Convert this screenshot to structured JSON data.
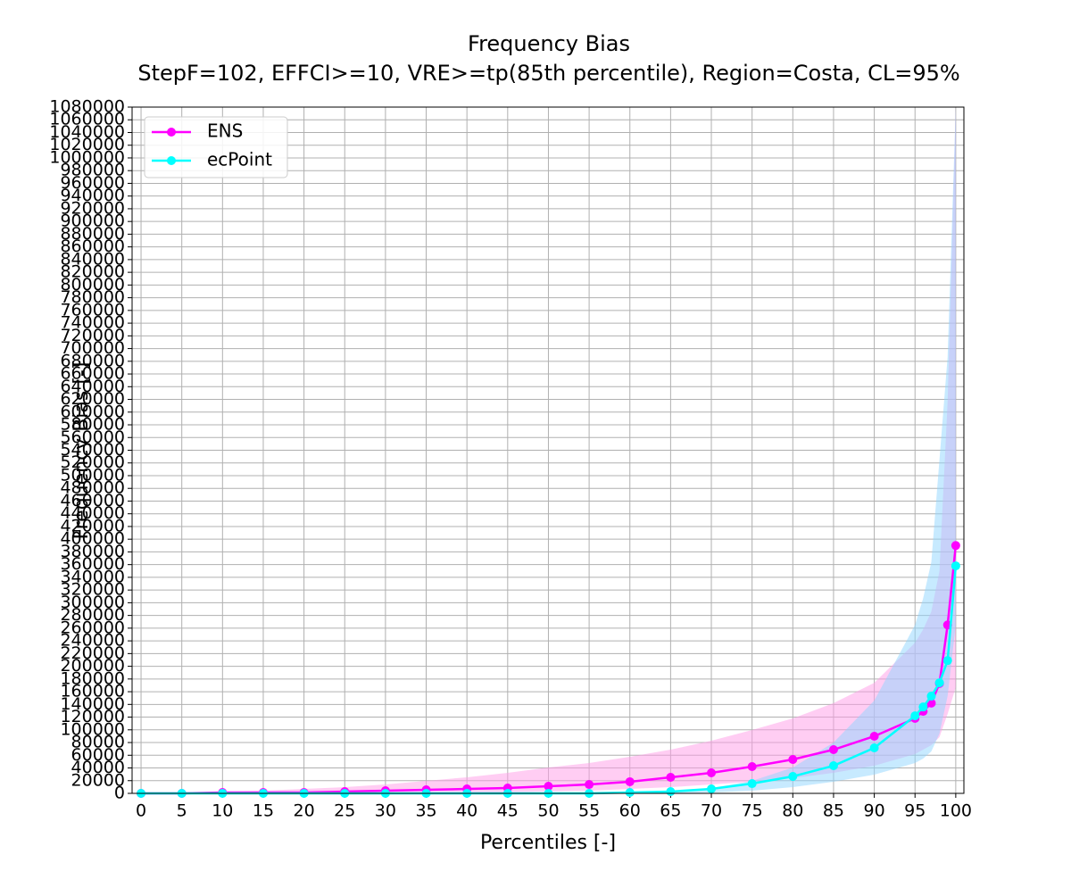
{
  "chart_data": {
    "type": "line",
    "title": "Frequency Bias",
    "subtitle": "StepF=102, EFFCI>=10, VRE>=tp(85th percentile), Region=Costa, CL=95%",
    "x_label": "Percentiles [-]",
    "y_label": "Frequency Bias [-]",
    "x": [
      0,
      5,
      10,
      15,
      20,
      25,
      30,
      35,
      40,
      45,
      50,
      55,
      60,
      65,
      70,
      75,
      80,
      85,
      90,
      95,
      96,
      97,
      98,
      99,
      100
    ],
    "series": [
      {
        "name": "ENS",
        "color": "#ff00ff",
        "band_color": "#ff9be8",
        "values": [
          0,
          0,
          1400,
          1400,
          1400,
          2800,
          4200,
          5600,
          7000,
          8400,
          11200,
          14000,
          18300,
          25300,
          32300,
          42100,
          53400,
          68800,
          89900,
          118000,
          129000,
          142000,
          173000,
          265000,
          390000
        ],
        "upper": [
          0,
          1400,
          2800,
          4200,
          7000,
          9800,
          14000,
          19700,
          25300,
          32300,
          40700,
          47700,
          57600,
          68800,
          82800,
          99700,
          118000,
          142000,
          174000,
          237000,
          258000,
          286000,
          350000,
          616000,
          1080000
        ],
        "lower": [
          0,
          0,
          0,
          0,
          0,
          0,
          0,
          0,
          0,
          1400,
          2800,
          4200,
          7000,
          9800,
          14000,
          18300,
          23900,
          32300,
          43500,
          61800,
          68800,
          75800,
          88500,
          125000,
          167000
        ]
      },
      {
        "name": "ecPoint",
        "color": "#00ffff",
        "band_color": "#8fd6ff",
        "values": [
          0,
          0,
          0,
          0,
          0,
          0,
          0,
          0,
          0,
          0,
          0,
          0,
          1400,
          2800,
          7000,
          15400,
          26700,
          43500,
          71600,
          122000,
          136000,
          153000,
          174000,
          209000,
          358000
        ],
        "upper": [
          0,
          0,
          0,
          0,
          0,
          0,
          0,
          0,
          0,
          0,
          0,
          0,
          1400,
          4200,
          8400,
          19700,
          40700,
          80000,
          146000,
          265000,
          307000,
          364000,
          525000,
          687000,
          1080000
        ],
        "lower": [
          0,
          0,
          0,
          0,
          0,
          0,
          0,
          0,
          0,
          0,
          0,
          0,
          0,
          0,
          1400,
          4200,
          9800,
          18300,
          29500,
          47700,
          54800,
          66000,
          94100,
          153000,
          265000
        ]
      }
    ],
    "xlim": [
      -1.1,
      101
    ],
    "xticks": [
      0,
      5,
      10,
      15,
      20,
      25,
      30,
      35,
      40,
      45,
      50,
      55,
      60,
      65,
      70,
      75,
      80,
      85,
      90,
      95,
      100
    ],
    "ylim": [
      0,
      1080000
    ],
    "yticks": [
      0,
      20000,
      40000,
      60000,
      80000,
      100000,
      120000,
      140000,
      160000,
      180000,
      200000,
      220000,
      240000,
      260000,
      280000,
      300000,
      320000,
      340000,
      360000,
      380000,
      400000,
      420000,
      440000,
      460000,
      480000,
      500000,
      520000,
      540000,
      560000,
      580000,
      600000,
      620000,
      640000,
      660000,
      680000,
      700000,
      720000,
      740000,
      760000,
      780000,
      800000,
      820000,
      840000,
      860000,
      880000,
      900000,
      920000,
      940000,
      960000,
      980000,
      1000000,
      1020000,
      1040000,
      1060000,
      1080000
    ],
    "grid": true,
    "legend": "upper left"
  }
}
